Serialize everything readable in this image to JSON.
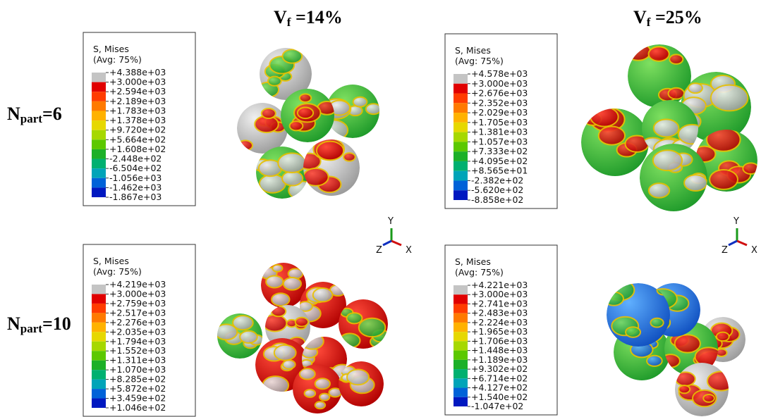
{
  "columns": [
    {
      "main": "V",
      "sub": "f",
      "rest": " =14%"
    },
    {
      "main": "V",
      "sub": "f",
      "rest": " =25%"
    }
  ],
  "rows": [
    {
      "main": "N",
      "sub": "part",
      "rest": "=6"
    },
    {
      "main": "N",
      "sub": "part",
      "rest": "=10"
    }
  ],
  "legends": [
    {
      "title": "S, Mises",
      "avg": "(Avg: 75%)",
      "values": [
        "+4.388e+03",
        "+3.000e+03",
        "+2.594e+03",
        "+2.189e+03",
        "+1.783e+03",
        "+1.378e+03",
        "+9.720e+02",
        "+5.664e+02",
        "+1.608e+02",
        "-2.448e+02",
        "-6.504e+02",
        "-1.056e+03",
        "-1.462e+03",
        "-1.867e+03"
      ]
    },
    {
      "title": "S, Mises",
      "avg": "(Avg: 75%)",
      "values": [
        "+4.578e+03",
        "+3.000e+03",
        "+2.676e+03",
        "+2.352e+03",
        "+2.029e+03",
        "+1.705e+03",
        "+1.381e+03",
        "+1.057e+03",
        "+7.333e+02",
        "+4.095e+02",
        "+8.565e+01",
        "-2.382e+02",
        "-5.620e+02",
        "-8.858e+02"
      ]
    },
    {
      "title": "S, Mises",
      "avg": "(Avg: 75%)",
      "values": [
        "+4.219e+03",
        "+3.000e+03",
        "+2.759e+03",
        "+2.517e+03",
        "+2.276e+03",
        "+2.035e+03",
        "+1.794e+03",
        "+1.552e+03",
        "+1.311e+03",
        "+1.070e+03",
        "+8.285e+02",
        "+5.872e+02",
        "+3.459e+02",
        "+1.046e+02"
      ]
    },
    {
      "title": "S, Mises",
      "avg": "(Avg: 75%)",
      "values": [
        "+4.221e+03",
        "+3.000e+03",
        "+2.741e+03",
        "+2.483e+03",
        "+2.224e+03",
        "+1.965e+03",
        "+1.706e+03",
        "+1.448e+03",
        "+1.189e+03",
        "+9.302e+02",
        "+6.714e+02",
        "+4.127e+02",
        "+1.540e+02",
        "-1.047e+02"
      ]
    }
  ],
  "triads": [
    {
      "y": "Y",
      "z": "Z",
      "x": "X"
    },
    {
      "y": "Y",
      "z": "Z",
      "x": "X"
    }
  ]
}
